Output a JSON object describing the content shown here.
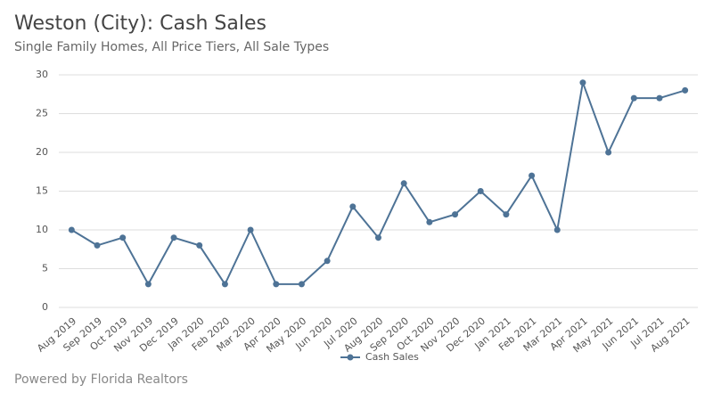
{
  "chart_data": {
    "type": "line",
    "title": "Weston (City): Cash Sales",
    "subtitle": "Single Family Homes, All Price Tiers, All Sale Types",
    "categories": [
      "Aug 2019",
      "Sep 2019",
      "Oct 2019",
      "Nov 2019",
      "Dec 2019",
      "Jan 2020",
      "Feb 2020",
      "Mar 2020",
      "Apr 2020",
      "May 2020",
      "Jun 2020",
      "Jul 2020",
      "Aug 2020",
      "Sep 2020",
      "Oct 2020",
      "Nov 2020",
      "Dec 2020",
      "Jan 2021",
      "Feb 2021",
      "Mar 2021",
      "Apr 2021",
      "May 2021",
      "Jun 2021",
      "Jul 2021",
      "Aug 2021"
    ],
    "series": [
      {
        "name": "Cash Sales",
        "color": "#4e7396",
        "values": [
          10,
          8,
          9,
          3,
          9,
          8,
          3,
          10,
          3,
          3,
          6,
          13,
          9,
          16,
          11,
          12,
          15,
          12,
          17,
          10,
          29,
          20,
          27,
          27,
          28
        ]
      }
    ],
    "ylim": [
      0,
      30
    ],
    "yticks": [
      0,
      5,
      10,
      15,
      20,
      25,
      30
    ],
    "grid": true,
    "legend": "bottom"
  },
  "footer": "Powered by Florida Realtors"
}
